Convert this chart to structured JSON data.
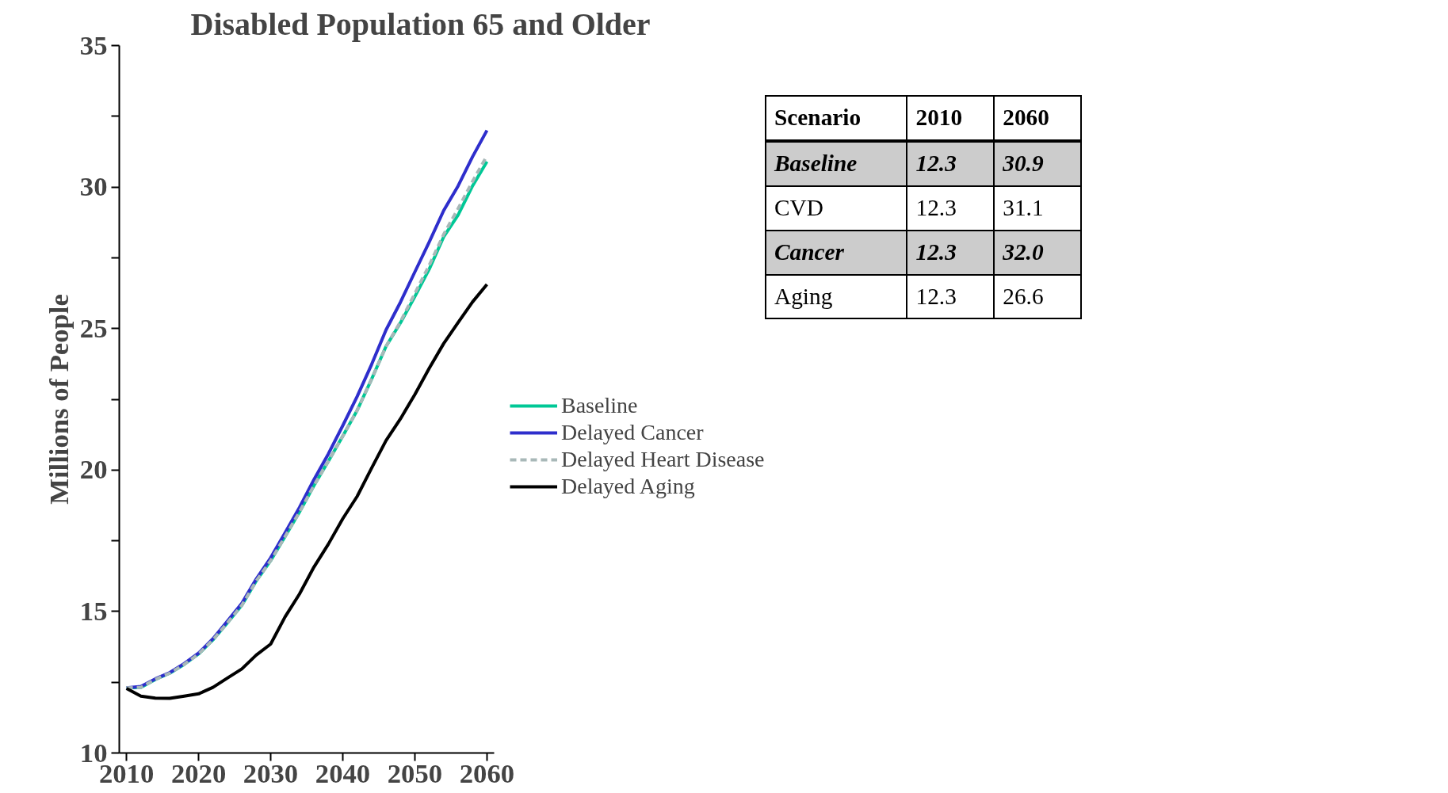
{
  "chart_data": {
    "type": "line",
    "title": "Disabled Population 65 and Older",
    "ylabel": "Millions of People",
    "x": [
      2010,
      2012,
      2014,
      2016,
      2018,
      2020,
      2022,
      2024,
      2026,
      2028,
      2030,
      2032,
      2034,
      2036,
      2038,
      2040,
      2042,
      2044,
      2046,
      2048,
      2050,
      2052,
      2054,
      2056,
      2058,
      2060
    ],
    "series": [
      {
        "name": "Baseline",
        "color": "#00c896",
        "line_style": "solid",
        "values": [
          12.3,
          12.32,
          12.6,
          12.82,
          13.13,
          13.5,
          14.0,
          14.6,
          15.22,
          16.08,
          16.8,
          17.65,
          18.52,
          19.45,
          20.31,
          21.2,
          22.11,
          23.21,
          24.37,
          25.2,
          26.13,
          27.1,
          28.24,
          29.01,
          30.04,
          30.9
        ]
      },
      {
        "name": "Delayed Cancer",
        "color": "#2e2ecc",
        "line_style": "solid",
        "values": [
          12.3,
          12.35,
          12.62,
          12.84,
          13.16,
          13.53,
          14.04,
          14.66,
          15.29,
          16.15,
          16.9,
          17.78,
          18.68,
          19.66,
          20.57,
          21.57,
          22.6,
          23.73,
          24.95,
          25.93,
          27.0,
          28.06,
          29.17,
          30.04,
          31.07,
          32.0
        ]
      },
      {
        "name": "Delayed Heart Disease",
        "color": "#a8b8b8",
        "line_style": "dashed",
        "values": [
          12.3,
          12.32,
          12.6,
          12.82,
          13.13,
          13.5,
          14.0,
          14.6,
          15.22,
          16.08,
          16.8,
          17.65,
          18.52,
          19.45,
          20.31,
          21.2,
          22.11,
          23.21,
          24.37,
          25.24,
          26.24,
          27.24,
          28.33,
          29.24,
          30.2,
          31.1
        ]
      },
      {
        "name": "Delayed Aging",
        "color": "#000000",
        "line_style": "solid",
        "values": [
          12.28,
          12.01,
          11.94,
          11.93,
          12.01,
          12.09,
          12.32,
          12.65,
          12.97,
          13.46,
          13.85,
          14.81,
          15.62,
          16.57,
          17.38,
          18.28,
          19.07,
          20.07,
          21.04,
          21.81,
          22.67,
          23.6,
          24.47,
          25.21,
          25.94,
          26.56
        ]
      }
    ],
    "xlim": [
      2009,
      2061
    ],
    "xticks": [
      2010,
      2020,
      2030,
      2040,
      2050,
      2060
    ],
    "ylim": [
      10,
      35
    ],
    "yticks": [
      10,
      {
        "value": 12.5,
        "label": null
      },
      15,
      {
        "value": 17.5,
        "label": null
      },
      20,
      {
        "value": 22.5,
        "label": null
      },
      25,
      {
        "value": 27.5,
        "label": null
      },
      30,
      {
        "value": 32.5,
        "label": null
      },
      35
    ],
    "grid": false,
    "legend": "right",
    "marker": "none",
    "annotations": [
      "Scenario",
      "2010",
      "2060",
      "Baseline",
      "12.3",
      "30.9",
      "CVD",
      "12.3",
      "31.1",
      "Cancer",
      "12.3",
      "32.0",
      "Aging",
      "12.3",
      "26.6"
    ]
  }
}
